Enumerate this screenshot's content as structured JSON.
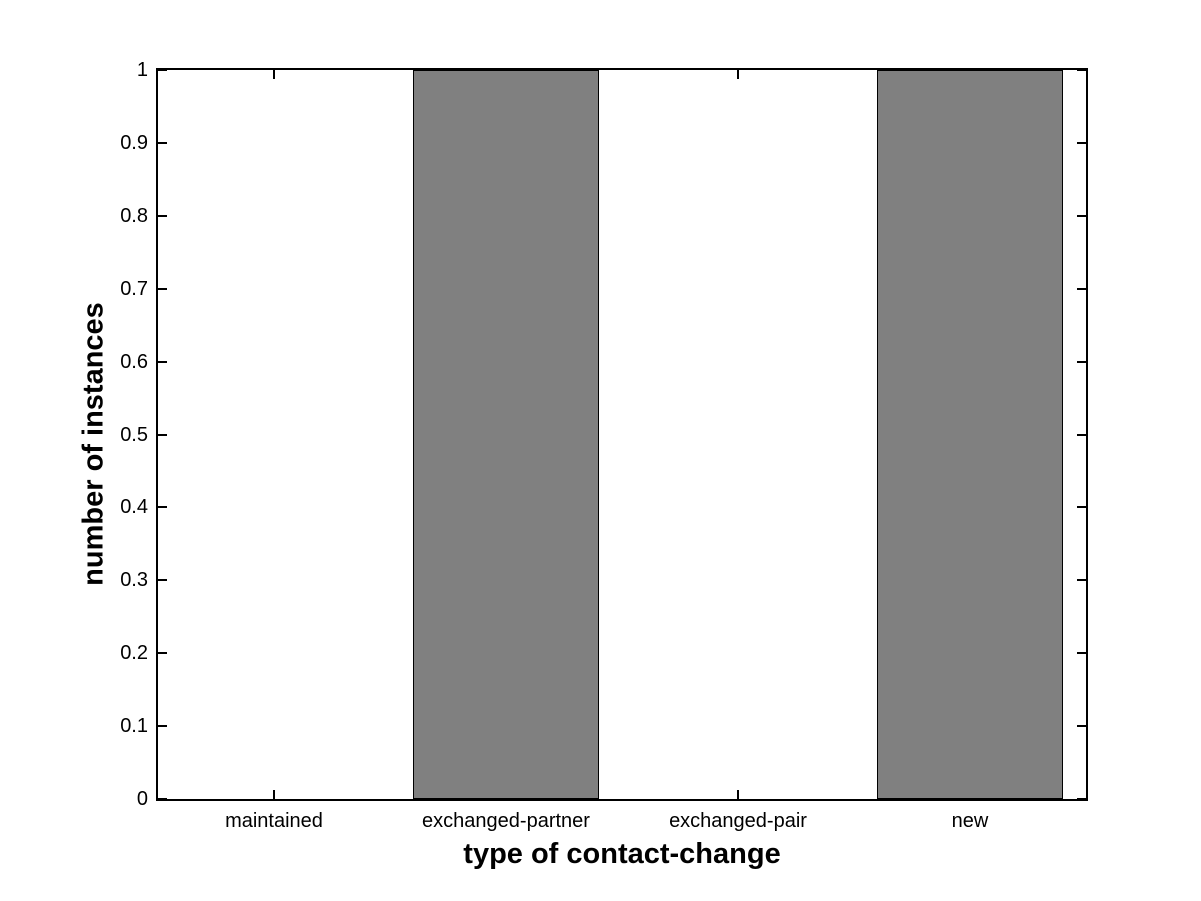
{
  "chart_data": {
    "type": "bar",
    "title": "",
    "categories": [
      "maintained",
      "exchanged-partner",
      "exchanged-pair",
      "new"
    ],
    "values": [
      0,
      1,
      0,
      1
    ],
    "xlabel": "type of contact-change",
    "ylabel": "number of instances",
    "ylim": [
      0,
      1
    ],
    "yticks": [
      0,
      0.1,
      0.2,
      0.3,
      0.4,
      0.5,
      0.6,
      0.7,
      0.8,
      0.9,
      1
    ],
    "ytick_labels": [
      "0",
      "0.1",
      "0.2",
      "0.3",
      "0.4",
      "0.5",
      "0.6",
      "0.7",
      "0.8",
      "0.9",
      "1"
    ],
    "bar_width_fraction": 0.8,
    "grid": false,
    "legend": "none",
    "colors": {
      "bar_fill": "#808080",
      "bar_edge": "#000000",
      "axis": "#000000",
      "text": "#000000",
      "background": "#ffffff"
    }
  }
}
